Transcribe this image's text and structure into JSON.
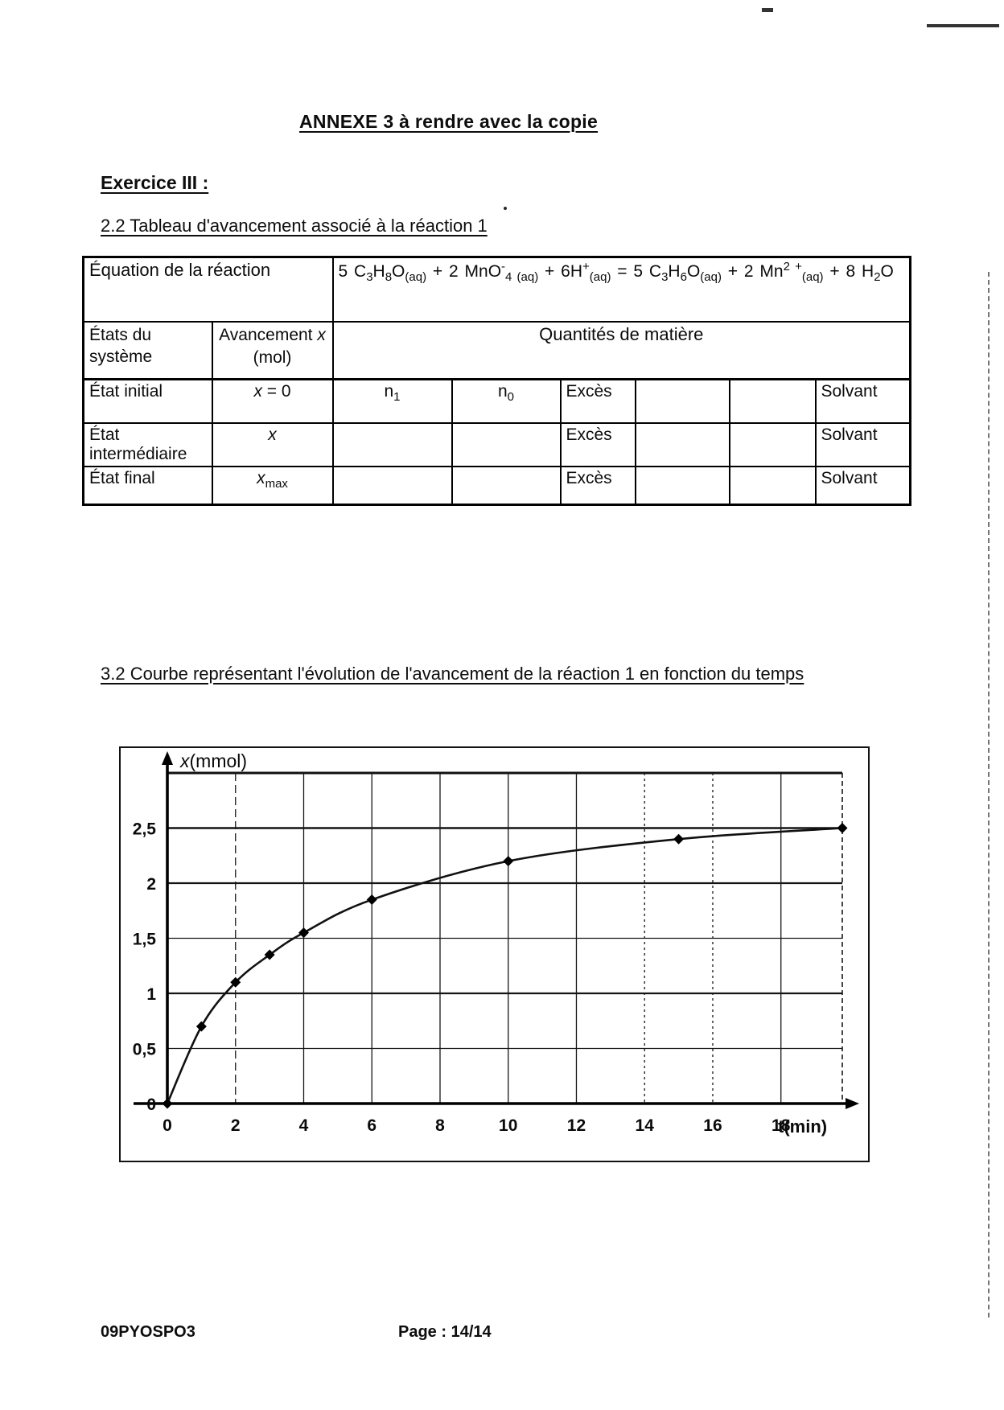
{
  "page": {
    "title": "ANNEXE 3 à rendre avec la copie",
    "exercise_heading": "Exercice III :",
    "section_2_2_heading": "2.2 Tableau d'avancement associé à la réaction 1",
    "section_3_2_heading": "3.2 Courbe représentant l'évolution de l'avancement de la réaction 1 en fonction du temps",
    "footer_left": "09PYOSPO3",
    "footer_page": "Page : 14/14"
  },
  "table": {
    "equation_label": "Équation de la réaction",
    "equation": "5 C~3~H~8~O~(aq)~ + 2 MnO^-^~4 (aq)~ + 6H^+^~(aq)~ = 5 C~3~H~6~O~(aq)~ + 2 Mn^2 +^~(aq)~ + 8 H~2~O",
    "col_state": "États du système",
    "col_avancement": "Avancement *x* (mol)",
    "col_quantities": "Quantités de matière",
    "rows": [
      {
        "state": "État initial",
        "avancement": "*x* = 0",
        "cells": [
          "n~1~",
          "n~0~",
          "Excès",
          "",
          "",
          "Solvant"
        ]
      },
      {
        "state": "État intermédiaire",
        "avancement": "*x*",
        "cells": [
          "",
          "",
          "Excès",
          "",
          "",
          "Solvant"
        ]
      },
      {
        "state": "État final",
        "avancement": "*x*~max~",
        "cells": [
          "",
          "",
          "Excès",
          "",
          "",
          "Solvant"
        ]
      }
    ]
  },
  "chart_data": {
    "type": "line",
    "title": "",
    "xlabel": "t(min)",
    "ylabel": "x(mmol)",
    "ylabel_markup": "*x*(mmol)",
    "x": [
      0,
      1,
      2,
      3,
      4,
      6,
      10,
      15,
      19.8
    ],
    "y": [
      0,
      0.7,
      1.1,
      1.35,
      1.55,
      1.85,
      2.2,
      2.4,
      2.5
    ],
    "xlim": [
      0,
      19.8
    ],
    "ylim": [
      0,
      3
    ],
    "x_ticks": [
      0,
      2,
      4,
      6,
      8,
      10,
      12,
      14,
      16,
      18
    ],
    "y_ticks": [
      0,
      0.5,
      1,
      1.5,
      2,
      2.5
    ],
    "y_tick_labels": [
      "0",
      "0,5",
      "1",
      "1,5",
      "2",
      "2,5"
    ],
    "grid": true,
    "legend": false,
    "marker": "diamond",
    "line_color": "#111111"
  }
}
